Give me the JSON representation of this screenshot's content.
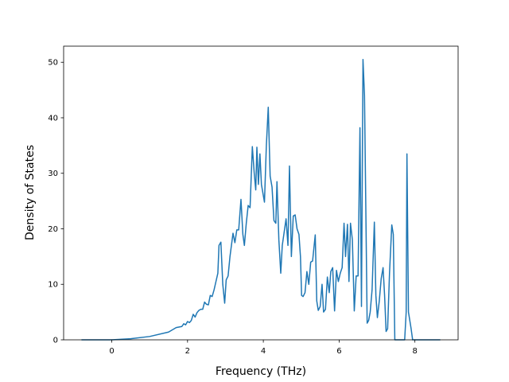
{
  "chart_data": {
    "type": "line",
    "xlabel": "Frequency (THz)",
    "ylabel": "Density of States",
    "color": "#1f77b4",
    "xlim": [
      -1.27,
      9.14
    ],
    "ylim": [
      0,
      52.9
    ],
    "xticks": [
      0,
      2,
      4,
      6,
      8
    ],
    "yticks": [
      0,
      10,
      20,
      30,
      40,
      50
    ],
    "x": [
      -0.8,
      0,
      0.5,
      1.0,
      1.5,
      1.7,
      1.85,
      1.9,
      1.95,
      2.0,
      2.05,
      2.1,
      2.15,
      2.2,
      2.25,
      2.3,
      2.35,
      2.4,
      2.45,
      2.5,
      2.55,
      2.6,
      2.65,
      2.7,
      2.75,
      2.8,
      2.83,
      2.88,
      2.93,
      2.98,
      3.02,
      3.07,
      3.12,
      3.2,
      3.25,
      3.3,
      3.35,
      3.41,
      3.46,
      3.5,
      3.55,
      3.6,
      3.65,
      3.71,
      3.76,
      3.8,
      3.83,
      3.87,
      3.91,
      3.95,
      4.03,
      4.08,
      4.13,
      4.18,
      4.23,
      4.28,
      4.33,
      4.36,
      4.41,
      4.46,
      4.5,
      4.6,
      4.65,
      4.69,
      4.74,
      4.79,
      4.84,
      4.89,
      4.94,
      4.98,
      5.01,
      5.05,
      5.1,
      5.15,
      5.2,
      5.25,
      5.3,
      5.37,
      5.41,
      5.45,
      5.5,
      5.55,
      5.59,
      5.64,
      5.69,
      5.74,
      5.78,
      5.83,
      5.88,
      5.93,
      5.98,
      6.03,
      6.08,
      6.13,
      6.17,
      6.22,
      6.26,
      6.3,
      6.35,
      6.4,
      6.45,
      6.5,
      6.55,
      6.59,
      6.63,
      6.67,
      6.74,
      6.78,
      6.82,
      6.87,
      6.93,
      6.97,
      7.01,
      7.06,
      7.11,
      7.16,
      7.2,
      7.24,
      7.28,
      7.33,
      7.39,
      7.43,
      7.47,
      7.73,
      7.77,
      7.79,
      7.83,
      7.9,
      7.94,
      8.67
    ],
    "values": [
      0,
      0,
      0.2,
      0.6,
      1.4,
      2.2,
      2.4,
      2.9,
      2.7,
      3.3,
      3.1,
      3.5,
      4.6,
      4.1,
      4.9,
      5.3,
      5.5,
      5.5,
      6.8,
      6.4,
      6.3,
      8.0,
      7.8,
      9.0,
      10.5,
      12,
      17,
      17.6,
      10,
      6.6,
      10.8,
      11.5,
      15,
      19.2,
      17.5,
      19.8,
      19.8,
      25.3,
      19,
      17,
      21,
      24.2,
      23.8,
      34.8,
      30,
      27,
      34.7,
      28,
      33.5,
      28,
      24.8,
      35,
      41.9,
      29.5,
      27.5,
      21.5,
      21,
      28.5,
      18,
      12,
      17,
      21.8,
      17,
      31.3,
      15,
      22.3,
      22.5,
      20,
      19,
      15,
      8,
      7.8,
      8.5,
      12.3,
      10,
      14,
      14.2,
      18.9,
      7,
      5.3,
      6,
      10,
      5,
      5.5,
      11.3,
      8.5,
      12.3,
      13,
      5.2,
      12.5,
      10.5,
      12,
      13,
      21,
      15,
      20.8,
      10.5,
      21,
      18,
      5.2,
      11.5,
      11.5,
      38.2,
      6,
      50.5,
      44,
      3,
      3.5,
      5,
      9,
      21.2,
      8,
      4,
      7,
      11,
      13,
      8,
      1.5,
      2,
      12,
      20.7,
      19,
      0,
      0,
      5,
      33.5,
      5,
      2,
      0,
      0
    ]
  }
}
